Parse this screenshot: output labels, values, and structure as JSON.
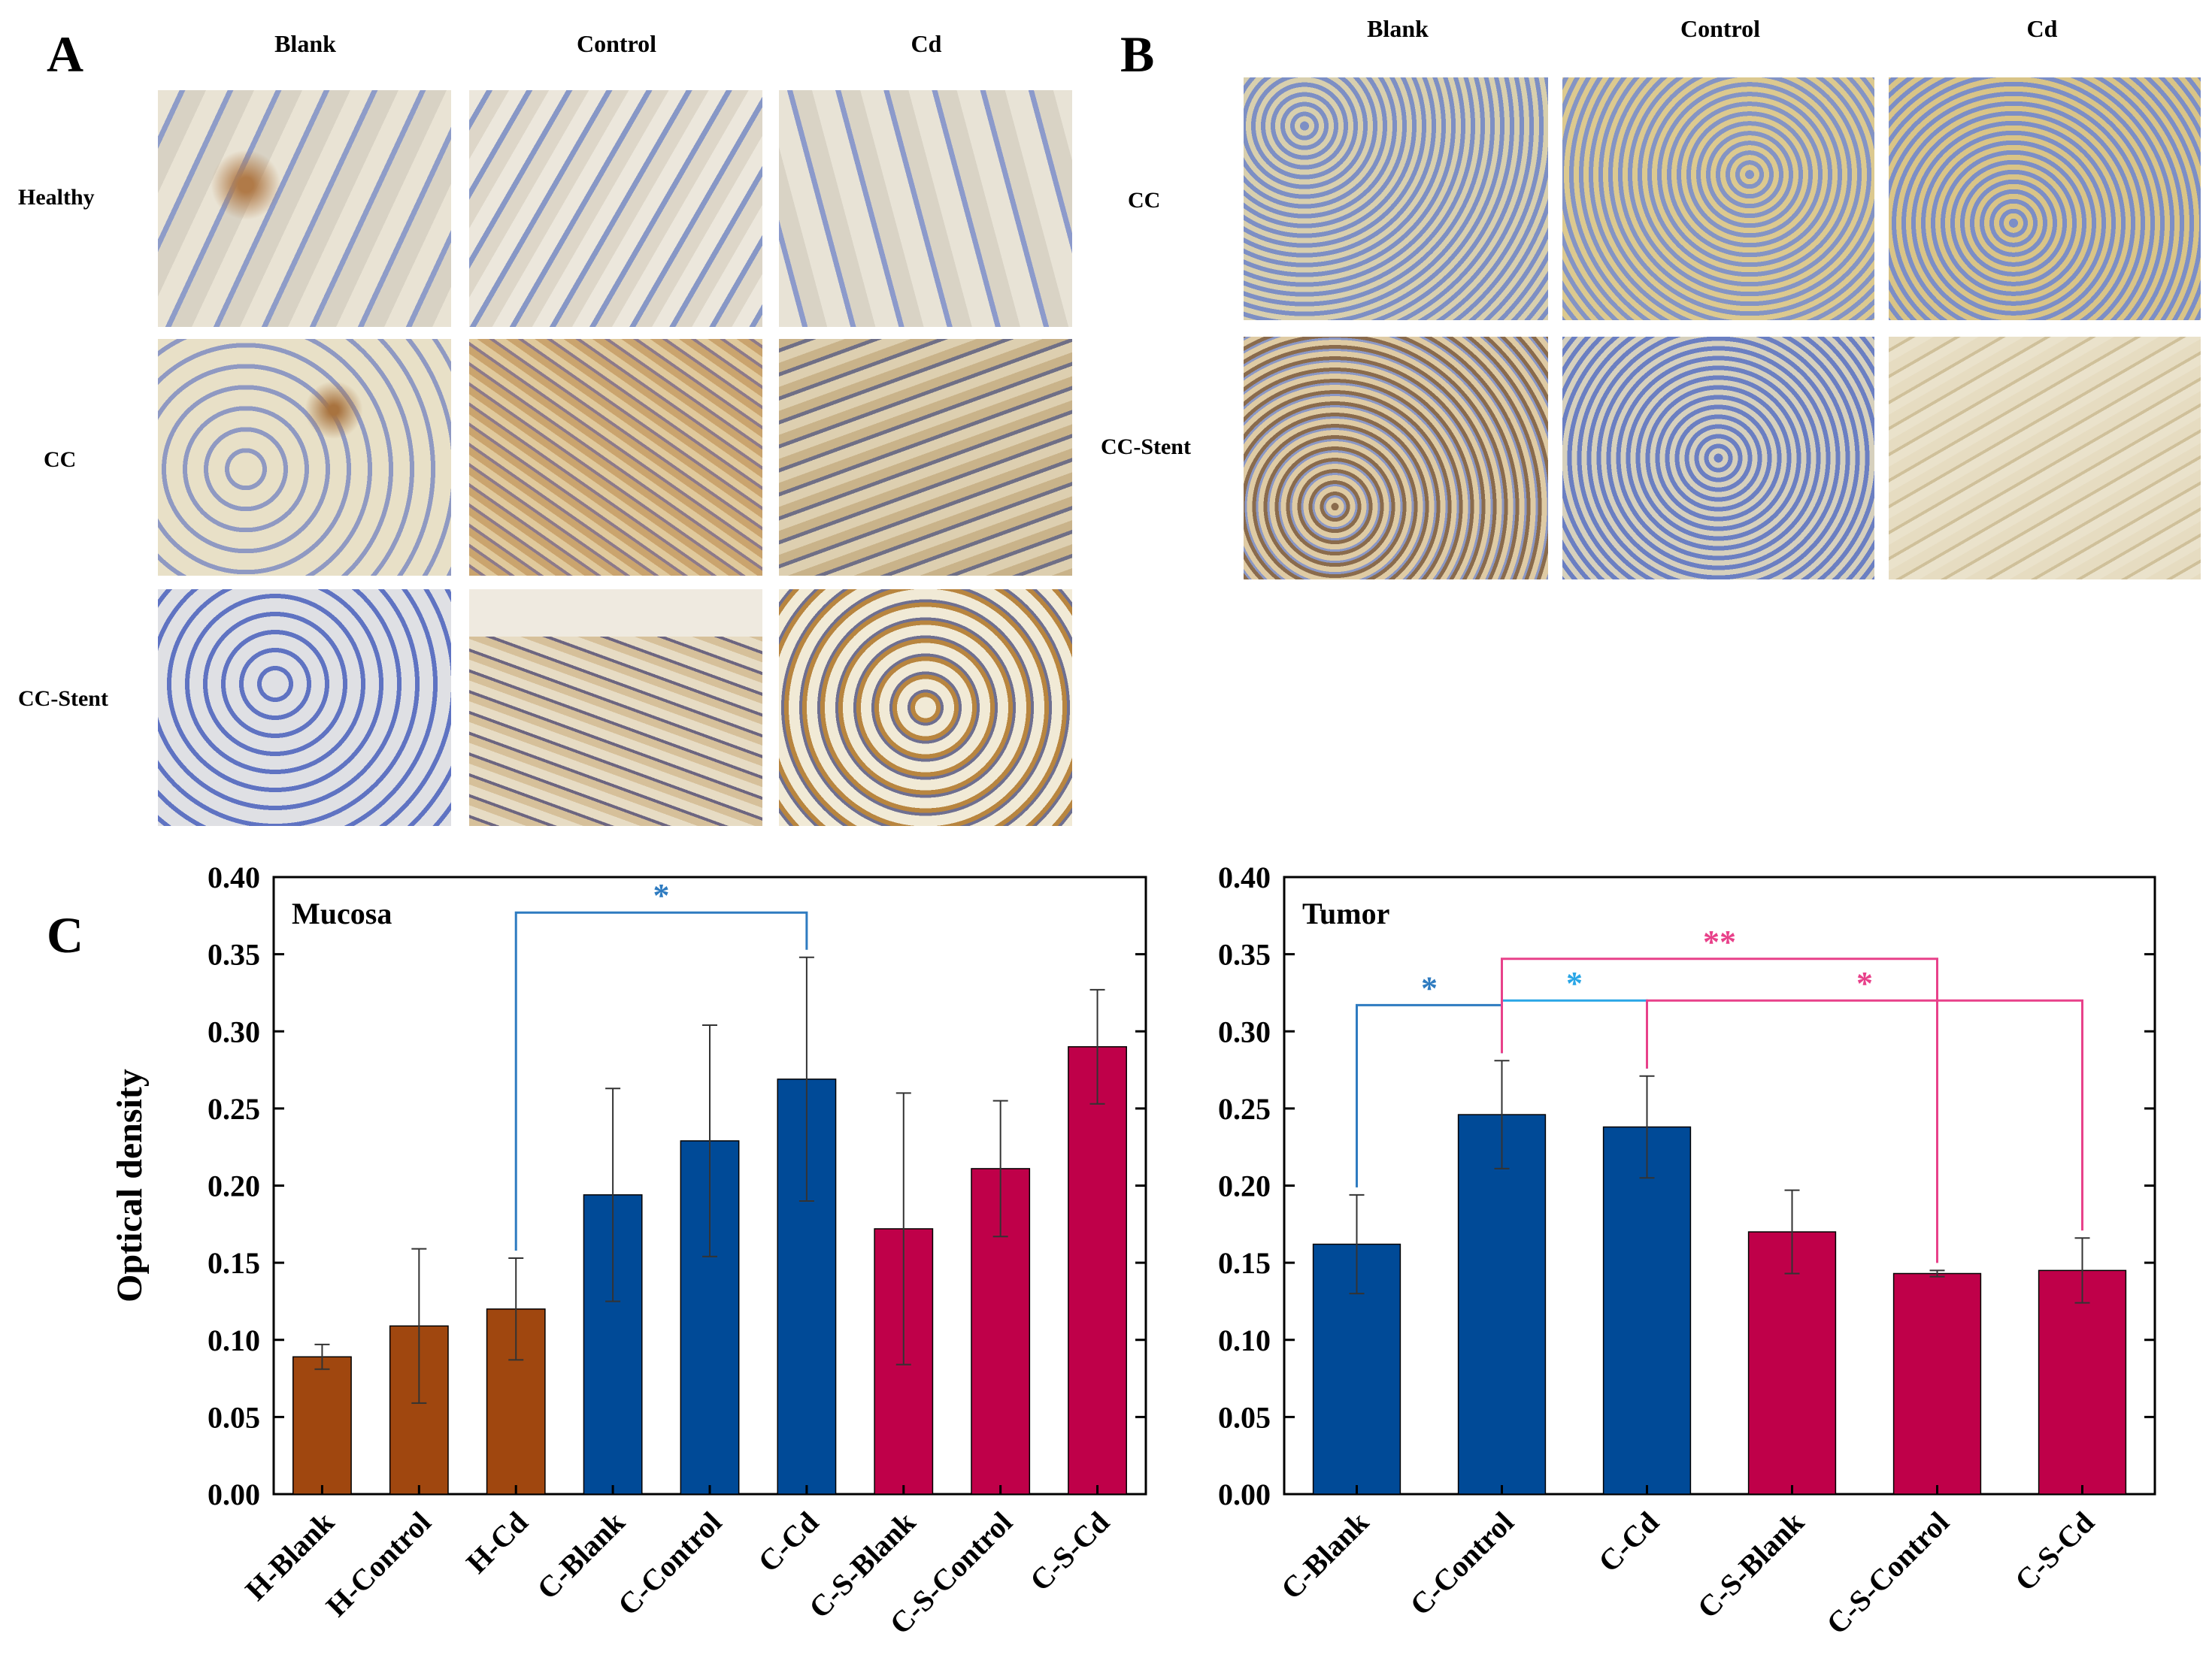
{
  "panel_a": {
    "letter": "A",
    "columns": [
      "Blank",
      "Control",
      "Cd"
    ],
    "rows": [
      "Healthy",
      "CC",
      "CC-Stent"
    ]
  },
  "panel_b": {
    "letter": "B",
    "columns": [
      "Blank",
      "Control",
      "Cd"
    ],
    "rows": [
      "CC",
      "CC-Stent"
    ]
  },
  "panel_c": {
    "letter": "C"
  },
  "chart_data": [
    {
      "type": "bar",
      "title": "Mucosa",
      "ylabel": "Optical density",
      "xlabel": "",
      "ylim": [
        0,
        0.4
      ],
      "yticks": [
        "0.00",
        "0.05",
        "0.10",
        "0.15",
        "0.20",
        "0.25",
        "0.30",
        "0.35",
        "0.40"
      ],
      "categories": [
        "H-Blank",
        "H-Control",
        "H-Cd",
        "C-Blank",
        "C-Control",
        "C-Cd",
        "C-S-Blank",
        "C-S-Control",
        "C-S-Cd"
      ],
      "values": [
        0.089,
        0.109,
        0.12,
        0.194,
        0.229,
        0.269,
        0.172,
        0.211,
        0.29
      ],
      "errors": [
        0.008,
        0.05,
        0.033,
        0.069,
        0.075,
        0.079,
        0.088,
        0.044,
        0.037
      ],
      "colors": [
        "#a0470f",
        "#a0470f",
        "#a0470f",
        "#004a97",
        "#004a97",
        "#004a97",
        "#bf0049",
        "#bf0049",
        "#bf0049"
      ],
      "significance": [
        {
          "from": 2,
          "to": 5,
          "label": "*",
          "color": "#2e7bc0",
          "level": 0.377
        }
      ],
      "grid": false
    },
    {
      "type": "bar",
      "title": "Tumor",
      "ylabel": "",
      "xlabel": "",
      "ylim": [
        0,
        0.4
      ],
      "yticks": [
        "0.00",
        "0.05",
        "0.10",
        "0.15",
        "0.20",
        "0.25",
        "0.30",
        "0.35",
        "0.40"
      ],
      "categories": [
        "C-Blank",
        "C-Control",
        "C-Cd",
        "C-S-Blank",
        "C-S-Control",
        "C-S-Cd"
      ],
      "values": [
        0.162,
        0.246,
        0.238,
        0.17,
        0.143,
        0.145
      ],
      "errors": [
        0.032,
        0.035,
        0.033,
        0.027,
        0.002,
        0.021
      ],
      "colors": [
        "#004a97",
        "#004a97",
        "#004a97",
        "#bf0049",
        "#bf0049",
        "#bf0049"
      ],
      "significance": [
        {
          "from": 0,
          "to": 1,
          "label": "*",
          "color": "#2e7bc0",
          "level": 0.317
        },
        {
          "from": 1,
          "to": 2,
          "label": "*",
          "color": "#2aa6e6",
          "level": 0.32
        },
        {
          "from": 1,
          "to": 4,
          "label": "**",
          "color": "#e8418a",
          "level": 0.347
        },
        {
          "from": 2,
          "to": 5,
          "label": "*",
          "color": "#e8418a",
          "level": 0.32
        }
      ],
      "grid": false
    }
  ]
}
